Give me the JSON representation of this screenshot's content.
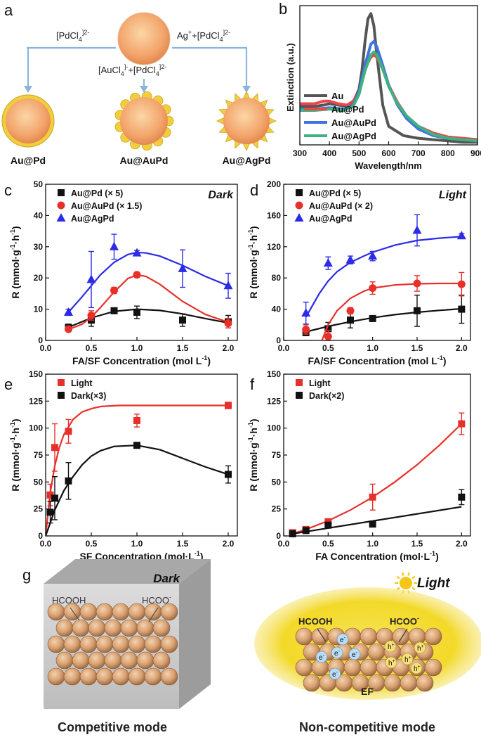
{
  "panel_letters": {
    "a": "a",
    "b": "b",
    "c": "c",
    "d": "d",
    "e": "e",
    "f": "f",
    "g": "g"
  },
  "panel_a": {
    "route_left_base": "[PdCl",
    "route_left_sub": "4",
    "route_left_sup": "]2-",
    "route_mid_part1": "[AuCl",
    "route_mid_sub1": "4",
    "route_mid_sup1": "]-",
    "route_mid_part2": "+[PdCl",
    "route_mid_sub2": "4",
    "route_mid_sup2": "]2-",
    "route_right_part1": "Ag",
    "route_right_sup1": "+",
    "route_right_part2": "+[PdCl",
    "route_right_sub2": "4",
    "route_right_sup2": "]2-",
    "labels": [
      "Au@Pd",
      "Au@AuPd",
      "Au@AgPd"
    ],
    "colors": {
      "core": "#f3a56c",
      "shell": "#f2cf3a",
      "arrow": "#8bb4dd"
    }
  },
  "panel_g": {
    "left_title": "Dark",
    "left_molecule1": "HCOOH",
    "left_molecule2_base": "HCOO",
    "left_molecule2_sup": "-",
    "left_caption": "Competitive mode",
    "right_title": "Light",
    "right_molecule1": "HCOOH",
    "right_molecule2_base": "HCOO",
    "right_molecule2_sup": "-",
    "right_field": "EF",
    "electron": "e",
    "electron_sup": "-",
    "hole": "h",
    "hole_sup": "+",
    "right_caption": "Non-competitive mode",
    "colors": {
      "box": "#c9c9c9",
      "sphere": "#d9a070",
      "glow": "#f3d928",
      "sun": "#f5c518",
      "electron": "#b8dcf4"
    }
  },
  "chart_data": [
    {
      "id": "b",
      "type": "line",
      "title": "",
      "xlabel": "Wavelength/nm",
      "ylabel": "Extinction (a.u.)",
      "xlim": [
        300,
        900
      ],
      "xticks": [
        300,
        400,
        500,
        600,
        700,
        800,
        900
      ],
      "ylim": [
        0,
        1.05
      ],
      "legend": "bottom-left",
      "series": [
        {
          "name": "Au",
          "color": "#555555",
          "x": [
            300,
            350,
            380,
            400,
            430,
            460,
            480,
            500,
            510,
            520,
            530,
            540,
            550,
            560,
            580,
            600,
            650,
            700,
            750,
            800,
            850,
            900
          ],
          "y": [
            0.29,
            0.29,
            0.3,
            0.31,
            0.3,
            0.29,
            0.32,
            0.42,
            0.56,
            0.78,
            0.95,
            0.99,
            0.9,
            0.68,
            0.3,
            0.14,
            0.07,
            0.05,
            0.04,
            0.03,
            0.02,
            0.02
          ]
        },
        {
          "name": "Au@Pd",
          "color": "#e8474c",
          "x": [
            300,
            350,
            380,
            400,
            430,
            460,
            480,
            500,
            520,
            530,
            540,
            550,
            560,
            580,
            600,
            630,
            660,
            700,
            750,
            800,
            850,
            900
          ],
          "y": [
            0.31,
            0.31,
            0.33,
            0.33,
            0.31,
            0.3,
            0.33,
            0.4,
            0.56,
            0.62,
            0.66,
            0.68,
            0.66,
            0.57,
            0.45,
            0.32,
            0.22,
            0.14,
            0.09,
            0.06,
            0.05,
            0.04
          ]
        },
        {
          "name": "Au@AuPd",
          "color": "#3f74e0",
          "x": [
            300,
            350,
            400,
            450,
            480,
            500,
            520,
            540,
            550,
            560,
            580,
            600,
            630,
            660,
            700,
            750,
            800,
            850,
            900
          ],
          "y": [
            0.27,
            0.27,
            0.28,
            0.27,
            0.3,
            0.4,
            0.6,
            0.76,
            0.78,
            0.74,
            0.6,
            0.45,
            0.3,
            0.2,
            0.12,
            0.07,
            0.05,
            0.04,
            0.03
          ]
        },
        {
          "name": "Au@AgPd",
          "color": "#3fb37f",
          "x": [
            300,
            350,
            400,
            450,
            480,
            500,
            520,
            540,
            550,
            560,
            580,
            600,
            630,
            660,
            700,
            750,
            800,
            850,
            900
          ],
          "y": [
            0.26,
            0.26,
            0.27,
            0.26,
            0.29,
            0.38,
            0.56,
            0.68,
            0.7,
            0.68,
            0.57,
            0.44,
            0.31,
            0.22,
            0.14,
            0.08,
            0.05,
            0.04,
            0.03
          ]
        }
      ]
    },
    {
      "id": "c",
      "type": "scatter",
      "title": "Dark",
      "xlabel": "FA/SF Concentration (mol L",
      "xlabel_sup": "-1",
      "xlabel_end": ")",
      "ylabel_parts": [
        "R (mmol·g",
        "-1",
        "·h",
        "-1",
        ")"
      ],
      "xlim": [
        0,
        2.1
      ],
      "xticks": [
        0.0,
        0.5,
        1.0,
        1.5,
        2.0
      ],
      "ylim": [
        0,
        50
      ],
      "yticks": [
        0,
        10,
        20,
        30,
        40,
        50
      ],
      "legend": "top-left",
      "series": [
        {
          "name": "Au@Pd (× 5)",
          "marker": "square",
          "color": "#111111",
          "x": [
            0.25,
            0.5,
            0.75,
            1.0,
            1.5,
            2.0
          ],
          "y": [
            4.2,
            6.5,
            9.5,
            9.0,
            6.5,
            6.0
          ],
          "err": [
            1.0,
            2.0,
            0.8,
            2.0,
            2.0,
            2.0
          ],
          "fit_x": [
            0.25,
            0.5,
            0.75,
            1.0,
            1.25,
            1.5,
            1.75,
            2.0
          ],
          "fit_y": [
            4.2,
            7.2,
            9.3,
            10.0,
            9.6,
            8.5,
            7.0,
            5.6
          ]
        },
        {
          "name": "Au@AuPd (× 1.5)",
          "marker": "circle",
          "color": "#e8302b",
          "x": [
            0.25,
            0.5,
            0.75,
            1.0,
            2.0
          ],
          "y": [
            3.6,
            8.0,
            16.0,
            21.0,
            5.5
          ],
          "err": [
            0.8,
            1.5,
            1.0,
            0.8,
            1.5
          ],
          "fit_x": [
            0.25,
            0.4,
            0.5,
            0.6,
            0.75,
            0.9,
            1.0,
            1.1,
            1.25,
            1.5,
            1.75,
            2.0
          ],
          "fit_y": [
            3.5,
            5.2,
            7.5,
            10.5,
            15.5,
            19.8,
            21.0,
            20.5,
            18.0,
            12.5,
            8.3,
            5.8
          ]
        },
        {
          "name": "Au@AgPd",
          "marker": "triangle",
          "color": "#2b2be8",
          "x": [
            0.25,
            0.5,
            0.75,
            1.0,
            1.5,
            2.0
          ],
          "y": [
            9.0,
            19.5,
            30.0,
            28.0,
            23.0,
            17.5
          ],
          "err": [
            1.0,
            9.0,
            4.0,
            0.8,
            6.0,
            4.0
          ],
          "fit_x": [
            0.25,
            0.4,
            0.5,
            0.6,
            0.75,
            0.9,
            1.0,
            1.1,
            1.25,
            1.5,
            1.75,
            2.0
          ],
          "fit_y": [
            9.0,
            14.0,
            17.5,
            21.0,
            25.0,
            27.5,
            28.2,
            28.0,
            27.0,
            24.0,
            20.5,
            17.5
          ]
        }
      ]
    },
    {
      "id": "d",
      "type": "scatter",
      "title": "Light",
      "xlabel": "FA/SF Concentration (mol L",
      "xlabel_sup": "-1",
      "xlabel_end": ")",
      "ylabel_parts": [
        "R (mmol·g",
        "-1",
        "·h",
        "-1",
        ")"
      ],
      "xlim": [
        0,
        2.1
      ],
      "xticks": [
        0.0,
        0.5,
        1.0,
        1.5,
        2.0
      ],
      "ylim": [
        0,
        200
      ],
      "yticks": [
        0,
        40,
        80,
        120,
        160,
        200
      ],
      "legend": "top-left",
      "series": [
        {
          "name": "Au@Pd (× 5)",
          "marker": "square",
          "color": "#111111",
          "x": [
            0.25,
            0.5,
            0.75,
            1.0,
            1.5,
            2.0
          ],
          "y": [
            10,
            15,
            26,
            28,
            38,
            40
          ],
          "err": [
            4,
            8,
            10,
            3,
            20,
            18
          ],
          "fit_x": [
            0.25,
            0.5,
            0.75,
            1.0,
            1.25,
            1.5,
            1.75,
            2.0
          ],
          "fit_y": [
            11,
            18,
            24,
            29,
            33,
            36,
            38.5,
            40.5
          ]
        },
        {
          "name": "Au@AuPd (× 2)",
          "marker": "circle",
          "color": "#e8302b",
          "x": [
            0.25,
            0.5,
            0.75,
            1.0,
            1.5,
            2.0
          ],
          "y": [
            14,
            5,
            38,
            67,
            73,
            72
          ],
          "err": [
            6,
            8,
            4,
            8,
            10,
            15
          ],
          "fit_x": [
            0.43,
            0.5,
            0.6,
            0.75,
            0.9,
            1.0,
            1.25,
            1.5,
            1.75,
            2.0
          ],
          "fit_y": [
            0,
            20,
            38,
            54,
            63,
            67,
            71,
            72.5,
            73,
            73
          ]
        },
        {
          "name": "Au@AgPd",
          "marker": "triangle",
          "color": "#2b2be8",
          "x": [
            0.25,
            0.5,
            0.75,
            1.0,
            1.5,
            2.0
          ],
          "y": [
            35,
            99,
            103,
            108,
            141,
            134
          ],
          "err": [
            14,
            8,
            5,
            6,
            20,
            3
          ],
          "fit_x": [
            0.25,
            0.4,
            0.5,
            0.6,
            0.75,
            0.9,
            1.0,
            1.25,
            1.5,
            1.75,
            2.0
          ],
          "fit_y": [
            30,
            60,
            76,
            88,
            100,
            108,
            113,
            122,
            128,
            131,
            133
          ]
        }
      ]
    },
    {
      "id": "e",
      "type": "scatter",
      "title": "",
      "xlabel": "SF Concentration (mol·L",
      "xlabel_sup": "-1",
      "xlabel_end": ")",
      "ylabel_parts": [
        "R (mmol·g",
        "-1",
        "·h",
        "-1",
        ")"
      ],
      "xlim": [
        0,
        2.1
      ],
      "xticks": [
        0.0,
        0.5,
        1.0,
        1.5,
        2.0
      ],
      "ylim": [
        0,
        150
      ],
      "yticks": [
        0,
        25,
        50,
        75,
        100,
        125,
        150
      ],
      "legend": "top-left",
      "series": [
        {
          "name": "Light",
          "marker": "square",
          "color": "#e8302b",
          "x": [
            0.05,
            0.1,
            0.25,
            1.0,
            2.0
          ],
          "y": [
            38,
            82,
            97,
            107,
            121
          ],
          "err": [
            10,
            22,
            11,
            6,
            3
          ],
          "fit_x": [
            0.0,
            0.05,
            0.1,
            0.15,
            0.2,
            0.3,
            0.4,
            0.5,
            0.6,
            0.8,
            1.0,
            1.5,
            2.0
          ],
          "fit_y": [
            0,
            40,
            65,
            82,
            94,
            108,
            115,
            118,
            120,
            121,
            121,
            121,
            121
          ]
        },
        {
          "name": "Dark(×3)",
          "marker": "square",
          "color": "#111111",
          "x": [
            0.05,
            0.1,
            0.25,
            1.0,
            2.0
          ],
          "y": [
            22,
            35,
            51,
            84,
            57
          ],
          "err": [
            10,
            20,
            17,
            2,
            8
          ],
          "fit_x": [
            0.0,
            0.05,
            0.1,
            0.2,
            0.3,
            0.4,
            0.5,
            0.6,
            0.75,
            1.0,
            1.25,
            1.5,
            1.75,
            2.0
          ],
          "fit_y": [
            0,
            12,
            24,
            42,
            55,
            66,
            74,
            79,
            83,
            84,
            80,
            72,
            64,
            57
          ]
        }
      ]
    },
    {
      "id": "f",
      "type": "scatter",
      "title": "",
      "xlabel": "FA Concentration (mol·L",
      "xlabel_sup": "-1",
      "xlabel_end": ")",
      "ylabel_parts": [
        "R (mmol·g",
        "-1",
        "·h",
        "-1",
        ")"
      ],
      "xlim": [
        0,
        2.1
      ],
      "xticks": [
        0.0,
        0.5,
        1.0,
        1.5,
        2.0
      ],
      "ylim": [
        0,
        150
      ],
      "yticks": [
        0,
        25,
        50,
        75,
        100,
        125,
        150
      ],
      "legend": "top-left",
      "series": [
        {
          "name": "Light",
          "marker": "square",
          "color": "#e8302b",
          "x": [
            0.1,
            0.25,
            0.5,
            1.0,
            2.0
          ],
          "y": [
            3,
            6,
            13,
            36,
            104
          ],
          "err": [
            2,
            2,
            3,
            12,
            10
          ],
          "fit_x": [
            0.1,
            0.25,
            0.5,
            0.75,
            1.0,
            1.25,
            1.5,
            1.75,
            2.0
          ],
          "fit_y": [
            2,
            6,
            14,
            24,
            36,
            50,
            66,
            84,
            104
          ]
        },
        {
          "name": "Dark(×2)",
          "marker": "square",
          "color": "#111111",
          "x": [
            0.1,
            0.25,
            0.5,
            1.0,
            2.0
          ],
          "y": [
            2,
            5,
            10,
            11,
            36
          ],
          "err": [
            1,
            1,
            2,
            2,
            7
          ],
          "fit_x": [
            0.1,
            2.0
          ],
          "fit_y": [
            2,
            27
          ]
        }
      ]
    }
  ]
}
